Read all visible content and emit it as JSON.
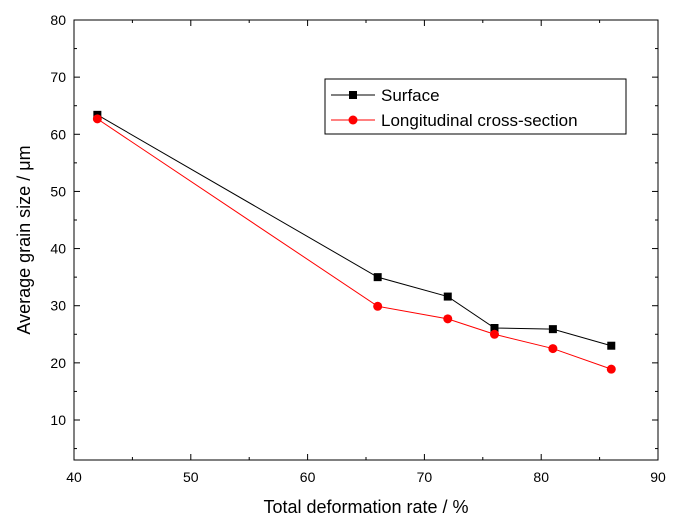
{
  "chart_data": {
    "type": "line",
    "title": "",
    "xlabel": "Total deformation rate / %",
    "ylabel": "Average grain size / μm",
    "xlim": [
      40,
      90
    ],
    "ylim": [
      3,
      80
    ],
    "xticks": [
      40,
      50,
      60,
      70,
      80,
      90
    ],
    "yticks": [
      10,
      20,
      30,
      40,
      50,
      60,
      70,
      80
    ],
    "grid": false,
    "legend_position": "top-right",
    "series": [
      {
        "name": "Surface",
        "marker": "square",
        "color": "#000000",
        "x": [
          42,
          66,
          72,
          76,
          81,
          86
        ],
        "y": [
          63.4,
          35.0,
          31.6,
          26.1,
          25.9,
          23.0
        ]
      },
      {
        "name": "Longitudinal cross-section",
        "marker": "circle",
        "color": "#ff0000",
        "x": [
          42,
          66,
          72,
          76,
          81,
          86
        ],
        "y": [
          62.7,
          29.9,
          27.7,
          25.0,
          22.5,
          18.9
        ]
      }
    ]
  }
}
